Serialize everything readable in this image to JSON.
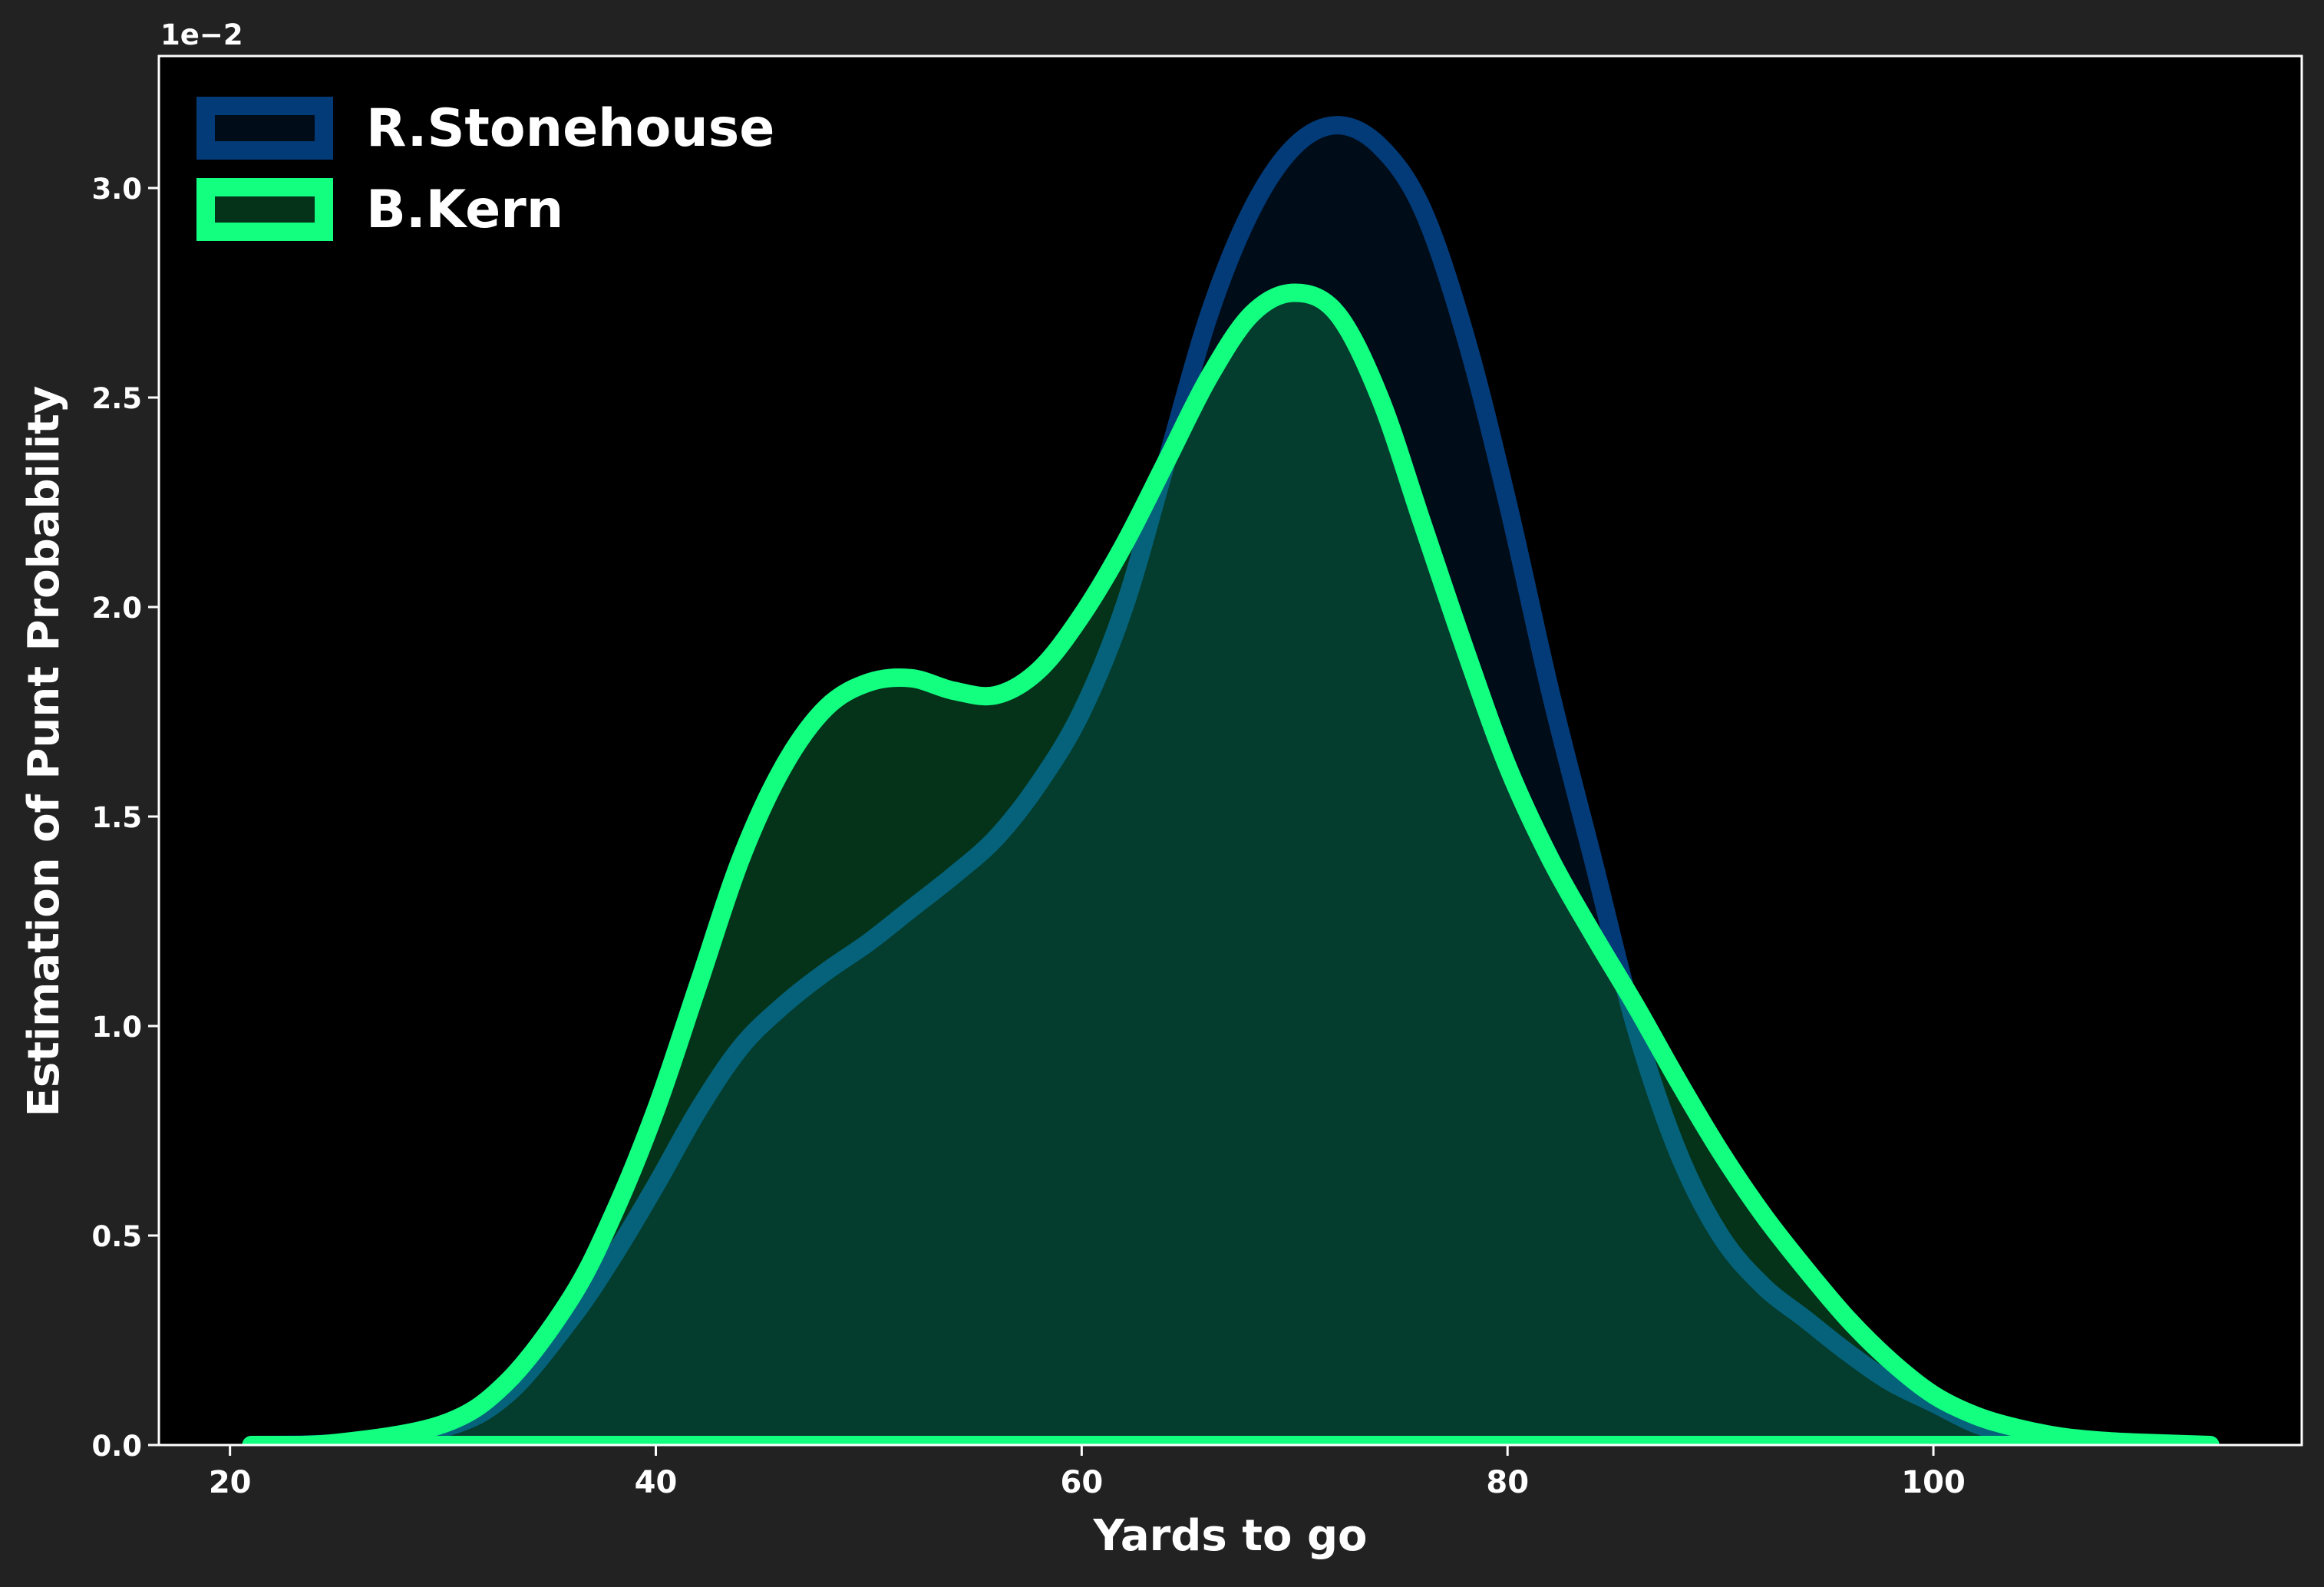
{
  "chart_data": {
    "type": "area",
    "ylabel": "Estimation of Punt Probability",
    "xlabel": "Yards to go",
    "y_offset_label": "1e−2",
    "legend": "upper left",
    "fill_opacity": 0.2,
    "background": "#000000",
    "figure_background": "#222222",
    "xlim": [
      16.66,
      117.3
    ],
    "ylim": [
      0,
      3.315
    ],
    "xticks": [
      20,
      40,
      60,
      80,
      100
    ],
    "yticks": [
      {
        "value": 0,
        "label": "0.0"
      },
      {
        "value": 0.5,
        "label": "0.5"
      },
      {
        "value": 1,
        "label": "1.0"
      },
      {
        "value": 1.5,
        "label": "1.5"
      },
      {
        "value": 2,
        "label": "2.0"
      },
      {
        "value": 2.5,
        "label": "2.5"
      },
      {
        "value": 3,
        "label": "3.0"
      }
    ],
    "x": [
      21,
      25,
      30,
      33,
      36,
      38,
      40,
      42,
      44,
      46,
      48,
      50,
      52,
      54,
      56,
      58,
      60,
      62,
      64,
      66,
      68,
      70,
      72,
      74,
      76,
      78,
      80,
      82,
      84,
      86,
      88,
      90,
      92,
      94,
      96,
      98,
      100,
      102,
      104,
      106,
      108,
      110,
      113
    ],
    "series": [
      {
        "name": "R.Stonehouse",
        "color": "#023b78",
        "text_color": "#0055ff",
        "values": [
          0,
          0.005,
          0.04,
          0.12,
          0.3,
          0.45,
          0.62,
          0.8,
          0.95,
          1.05,
          1.13,
          1.2,
          1.28,
          1.36,
          1.45,
          1.58,
          1.75,
          2.0,
          2.35,
          2.7,
          2.95,
          3.1,
          3.15,
          3.1,
          2.95,
          2.65,
          2.25,
          1.8,
          1.4,
          1.0,
          0.7,
          0.5,
          0.38,
          0.3,
          0.22,
          0.15,
          0.1,
          0.05,
          0.02,
          0.005,
          0,
          0,
          0
        ]
      },
      {
        "name": "B.Kern",
        "color": "#12ff80",
        "text_color": "#12ff80",
        "values": [
          0,
          0.005,
          0.05,
          0.15,
          0.35,
          0.55,
          0.8,
          1.1,
          1.4,
          1.62,
          1.76,
          1.82,
          1.83,
          1.8,
          1.79,
          1.85,
          1.98,
          2.15,
          2.35,
          2.55,
          2.7,
          2.75,
          2.7,
          2.5,
          2.2,
          1.9,
          1.62,
          1.4,
          1.22,
          1.05,
          0.87,
          0.7,
          0.55,
          0.42,
          0.3,
          0.2,
          0.12,
          0.07,
          0.04,
          0.02,
          0.01,
          0.005,
          0
        ]
      }
    ]
  }
}
